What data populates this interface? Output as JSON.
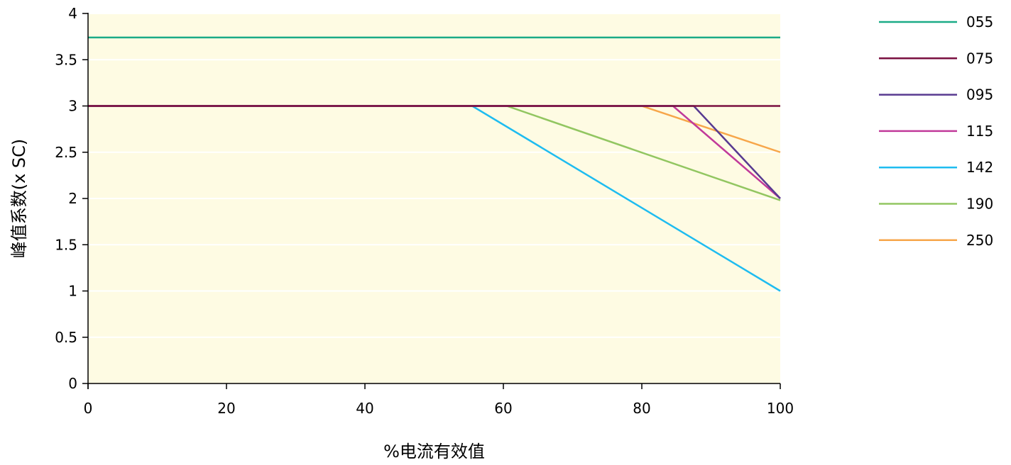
{
  "chart_data": {
    "type": "line",
    "title": "",
    "xlabel": "%电流有效值",
    "ylabel": "峰值系数(x SC)",
    "xlim": [
      0,
      100
    ],
    "ylim": [
      0,
      4
    ],
    "x_ticks": [
      "0",
      "20",
      "40",
      "60",
      "80",
      "100"
    ],
    "y_ticks": [
      "0",
      "0.5",
      "1",
      "1.5",
      "2",
      "2.5",
      "3",
      "3.5",
      "4"
    ],
    "grid": "horizontal",
    "plot_background": "#fefbe3",
    "legend_position": "right",
    "series": [
      {
        "name": "055",
        "color": "#1bab87",
        "points": [
          [
            0,
            3.74
          ],
          [
            100,
            3.74
          ]
        ]
      },
      {
        "name": "075",
        "color": "#7a1040",
        "points": [
          [
            0,
            3.0
          ],
          [
            100,
            3.0
          ]
        ]
      },
      {
        "name": "095",
        "color": "#583a91",
        "points": [
          [
            0,
            3.0
          ],
          [
            87.5,
            3.0
          ],
          [
            100,
            2.0
          ]
        ]
      },
      {
        "name": "115",
        "color": "#c13a9a",
        "points": [
          [
            0,
            3.0
          ],
          [
            84.5,
            3.0
          ],
          [
            100,
            2.0
          ]
        ]
      },
      {
        "name": "142",
        "color": "#1ebcf0",
        "points": [
          [
            0,
            3.0
          ],
          [
            55.5,
            3.0
          ],
          [
            100,
            1.0
          ]
        ]
      },
      {
        "name": "190",
        "color": "#92c661",
        "points": [
          [
            0,
            3.0
          ],
          [
            60.5,
            3.0
          ],
          [
            100,
            1.98
          ]
        ]
      },
      {
        "name": "250",
        "color": "#f7a64a",
        "points": [
          [
            0,
            3.0
          ],
          [
            80,
            3.0
          ],
          [
            100,
            2.5
          ]
        ]
      }
    ],
    "draw_order": [
      "142",
      "190",
      "250",
      "115",
      "095",
      "075",
      "055"
    ]
  }
}
